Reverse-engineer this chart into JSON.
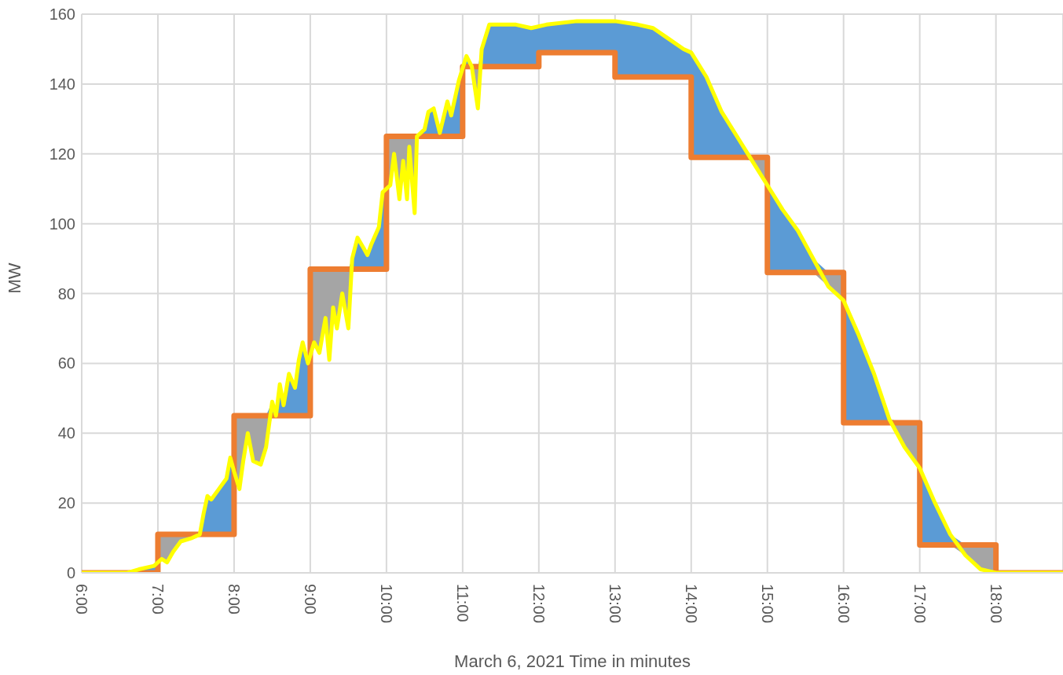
{
  "chart_data": {
    "type": "line",
    "xlabel": "March 6, 2021 Time in minutes",
    "ylabel": "MW",
    "xlim": [
      6,
      18.88
    ],
    "ylim": [
      0,
      160
    ],
    "xticks": [
      {
        "value": 6,
        "label": "6:00"
      },
      {
        "value": 7,
        "label": "7:00"
      },
      {
        "value": 8,
        "label": "8:00"
      },
      {
        "value": 9,
        "label": "9:00"
      },
      {
        "value": 10,
        "label": "10:00"
      },
      {
        "value": 11,
        "label": "11:00"
      },
      {
        "value": 12,
        "label": "12:00"
      },
      {
        "value": 13,
        "label": "13:00"
      },
      {
        "value": 14,
        "label": "14:00"
      },
      {
        "value": 15,
        "label": "15:00"
      },
      {
        "value": 16,
        "label": "16:00"
      },
      {
        "value": 17,
        "label": "17:00"
      },
      {
        "value": 18,
        "label": "18:00"
      }
    ],
    "yticks": [
      0,
      20,
      40,
      60,
      80,
      100,
      120,
      140,
      160
    ],
    "grid": true,
    "legend": false,
    "marker": "none",
    "line_style": "solid",
    "series": [
      {
        "type": "step",
        "color": "#ed7d31",
        "x": [
          6,
          7,
          8,
          9,
          10,
          11,
          12,
          13,
          14,
          15,
          16,
          17,
          18,
          18.88
        ],
        "values": [
          0,
          11,
          45,
          87,
          125,
          145,
          149,
          142,
          119,
          86,
          43,
          8,
          0,
          0
        ]
      },
      {
        "type": "line",
        "color": "#ffff00",
        "x": [
          6,
          6.6,
          6.75,
          6.95,
          7.05,
          7.12,
          7.2,
          7.3,
          7.45,
          7.55,
          7.6,
          7.65,
          7.7,
          7.8,
          7.9,
          7.95,
          8,
          8.07,
          8.12,
          8.18,
          8.25,
          8.35,
          8.42,
          8.5,
          8.55,
          8.6,
          8.65,
          8.72,
          8.8,
          8.85,
          8.9,
          8.97,
          9.05,
          9.12,
          9.2,
          9.25,
          9.3,
          9.35,
          9.42,
          9.5,
          9.55,
          9.62,
          9.7,
          9.75,
          9.8,
          9.9,
          9.95,
          10.05,
          10.1,
          10.17,
          10.22,
          10.27,
          10.3,
          10.37,
          10.4,
          10.5,
          10.55,
          10.62,
          10.7,
          10.8,
          10.85,
          10.95,
          11.05,
          11.12,
          11.2,
          11.25,
          11.35,
          11.5,
          11.7,
          11.9,
          12.1,
          12.5,
          13,
          13.3,
          13.5,
          13.7,
          13.9,
          14,
          14.2,
          14.4,
          14.6,
          14.8,
          15,
          15.2,
          15.4,
          15.6,
          15.8,
          16,
          16.2,
          16.4,
          16.6,
          16.8,
          17,
          17.2,
          17.4,
          17.6,
          17.8,
          18,
          18.88
        ],
        "values": [
          0,
          0,
          1,
          2,
          4,
          3,
          6,
          9,
          10,
          11,
          17,
          22,
          21,
          24,
          27,
          33,
          29,
          24,
          32,
          40,
          32,
          31,
          36,
          49,
          45,
          54,
          48,
          57,
          53,
          61,
          66,
          60,
          66,
          63,
          73,
          61,
          76,
          70,
          80,
          70,
          90,
          96,
          93,
          91,
          94,
          99,
          109,
          111,
          120,
          107,
          118,
          107,
          122,
          103,
          125,
          127,
          132,
          133,
          126,
          135,
          131,
          141,
          148,
          145,
          133,
          150,
          157,
          157,
          157,
          156,
          157,
          158,
          158,
          157,
          156,
          153,
          150,
          149,
          142,
          132,
          125,
          118,
          111,
          104,
          98,
          90,
          82,
          78,
          68,
          57,
          44,
          36,
          30,
          20,
          11,
          5,
          1,
          0,
          0
        ]
      }
    ]
  }
}
